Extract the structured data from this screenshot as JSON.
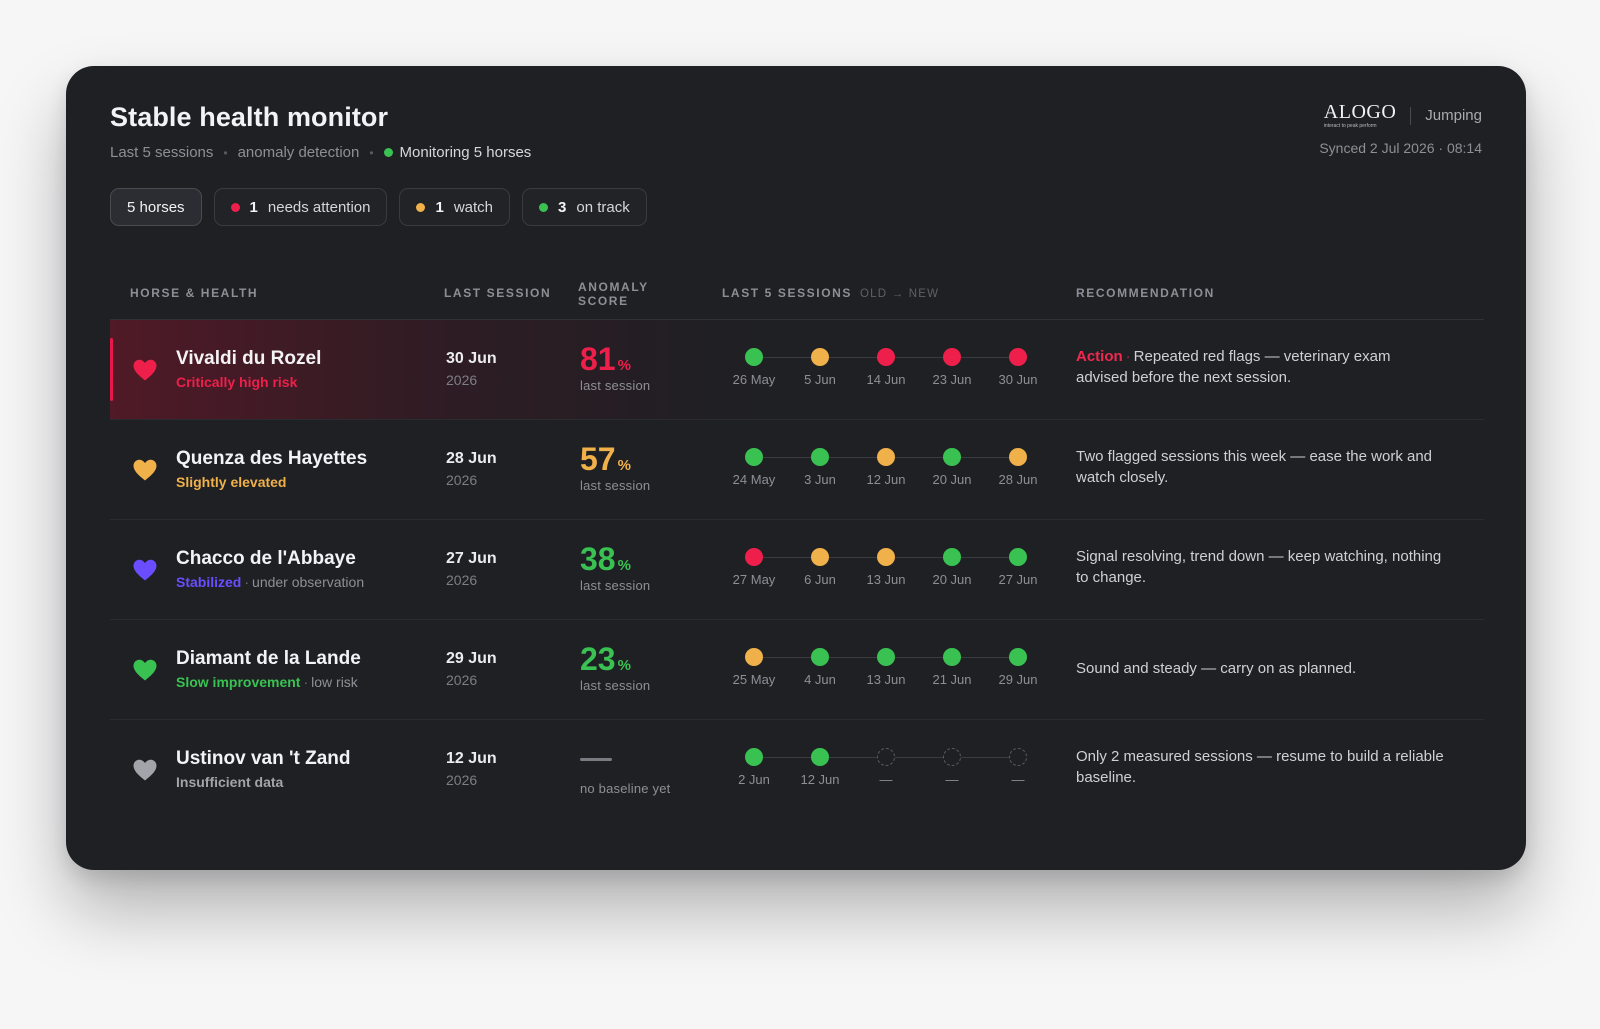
{
  "header": {
    "title": "Stable health monitor",
    "sub_sessions": "Last 5 sessions",
    "sub_method": "anomaly detection",
    "sub_monitoring": "Monitoring 5 horses",
    "brand_logo": "ALOGO",
    "brand_tagline": "interact to peak perform",
    "brand_mode": "Jumping",
    "synced": "Synced 2 Jul 2026 · 08:14"
  },
  "colors": {
    "red": "#ee1f4b",
    "amber": "#f0b04a",
    "green": "#39c252",
    "violet": "#6a4dff",
    "gray": "#a3a4aa"
  },
  "chips": {
    "all": "5 horses",
    "attention_count": "1",
    "attention_label": "needs attention",
    "watch_count": "1",
    "watch_label": "watch",
    "ontrack_count": "3",
    "ontrack_label": "on track"
  },
  "table": {
    "col_horse": "HORSE & HEALTH",
    "col_last": "LAST SESSION",
    "col_score_1": "ANOMALY",
    "col_score_2": "SCORE",
    "col_sessions": "LAST 5 SESSIONS",
    "col_sessions_sub": "OLD → NEW",
    "col_rec": "RECOMMENDATION"
  },
  "horses": [
    {
      "name": "Vivaldi du Rozel",
      "status_label": "Critically high risk",
      "status_color": "red",
      "status_extra": "",
      "heart_color": "red",
      "alert": true,
      "date": "30 Jun",
      "year": "2026",
      "score": "81",
      "score_unit": "%",
      "score_color": "red",
      "score_caption": "last session",
      "sessions": [
        {
          "date": "26 May",
          "state": "green"
        },
        {
          "date": "5 Jun",
          "state": "amber"
        },
        {
          "date": "14 Jun",
          "state": "red"
        },
        {
          "date": "23 Jun",
          "state": "red"
        },
        {
          "date": "30 Jun",
          "state": "red"
        }
      ],
      "rec_action": "Action",
      "rec_text": "Repeated red flags — veterinary exam advised before the next session."
    },
    {
      "name": "Quenza des Hayettes",
      "status_label": "Slightly elevated",
      "status_color": "amber",
      "status_extra": "",
      "heart_color": "amber",
      "alert": false,
      "date": "28 Jun",
      "year": "2026",
      "score": "57",
      "score_unit": "%",
      "score_color": "amber",
      "score_caption": "last session",
      "sessions": [
        {
          "date": "24 May",
          "state": "green"
        },
        {
          "date": "3 Jun",
          "state": "green"
        },
        {
          "date": "12 Jun",
          "state": "amber"
        },
        {
          "date": "20 Jun",
          "state": "green"
        },
        {
          "date": "28 Jun",
          "state": "amber"
        }
      ],
      "rec_action": "",
      "rec_text": "Two flagged sessions this week — ease the work and watch closely."
    },
    {
      "name": "Chacco de l'Abbaye",
      "status_label": "Stabilized",
      "status_color": "violet",
      "status_extra": "under observation",
      "heart_color": "violet",
      "alert": false,
      "date": "27 Jun",
      "year": "2026",
      "score": "38",
      "score_unit": "%",
      "score_color": "green",
      "score_caption": "last session",
      "sessions": [
        {
          "date": "27 May",
          "state": "red"
        },
        {
          "date": "6 Jun",
          "state": "amber"
        },
        {
          "date": "13 Jun",
          "state": "amber"
        },
        {
          "date": "20 Jun",
          "state": "green"
        },
        {
          "date": "27 Jun",
          "state": "green"
        }
      ],
      "rec_action": "",
      "rec_text": "Signal resolving, trend down — keep watching, nothing to change."
    },
    {
      "name": "Diamant de la Lande",
      "status_label": "Slow improvement",
      "status_color": "green",
      "status_extra": "low risk",
      "heart_color": "green",
      "alert": false,
      "date": "29 Jun",
      "year": "2026",
      "score": "23",
      "score_unit": "%",
      "score_color": "green",
      "score_caption": "last session",
      "sessions": [
        {
          "date": "25 May",
          "state": "amber"
        },
        {
          "date": "4 Jun",
          "state": "green"
        },
        {
          "date": "13 Jun",
          "state": "green"
        },
        {
          "date": "21 Jun",
          "state": "green"
        },
        {
          "date": "29 Jun",
          "state": "green"
        }
      ],
      "rec_action": "",
      "rec_text": "Sound and steady — carry on as planned."
    },
    {
      "name": "Ustinov van 't Zand",
      "status_label": "Insufficient data",
      "status_color": "gray",
      "status_extra": "",
      "heart_color": "gray",
      "alert": false,
      "date": "12 Jun",
      "year": "2026",
      "score": "",
      "score_unit": "",
      "score_color": "gray",
      "score_caption": "no baseline yet",
      "sessions": [
        {
          "date": "2 Jun",
          "state": "green"
        },
        {
          "date": "12 Jun",
          "state": "green"
        },
        {
          "date": "—",
          "state": "empty"
        },
        {
          "date": "—",
          "state": "empty"
        },
        {
          "date": "—",
          "state": "empty"
        }
      ],
      "rec_action": "",
      "rec_text": "Only 2 measured sessions — resume to build a reliable baseline."
    }
  ]
}
